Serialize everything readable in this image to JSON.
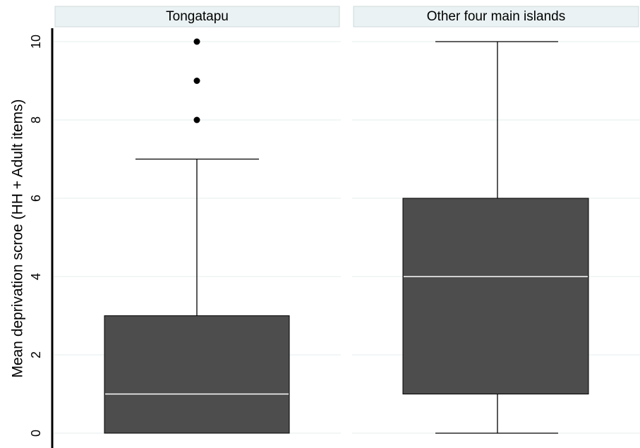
{
  "chart_data": {
    "type": "box",
    "ylabel": "Mean deprivation scroe (HH + Adult items)",
    "ylim": [
      0,
      10
    ],
    "yticks": [
      "0",
      "2",
      "4",
      "6",
      "8",
      "10"
    ],
    "grid": true,
    "panels": [
      {
        "title": "Tongatapu",
        "min": 0,
        "q1": 0,
        "median": 1,
        "q3": 3,
        "whisker_high": 7,
        "outliers": [
          8,
          9,
          10
        ]
      },
      {
        "title": "Other four main islands",
        "min": 0,
        "q1": 1,
        "median": 4,
        "q3": 6,
        "whisker_high": 10,
        "outliers": []
      }
    ]
  }
}
